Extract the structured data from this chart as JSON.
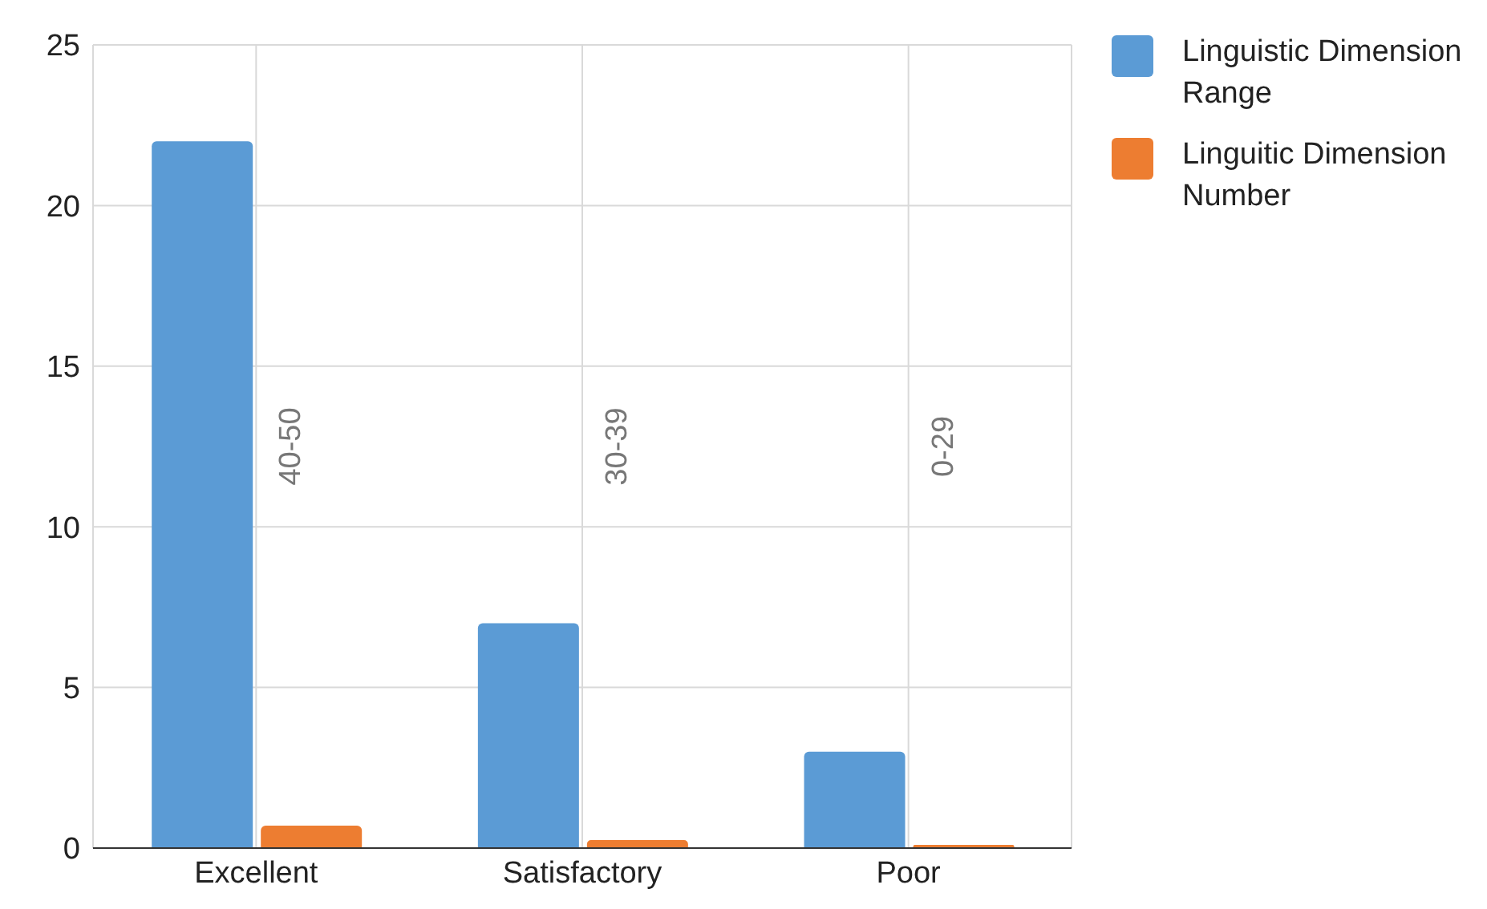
{
  "chart_data": {
    "type": "bar",
    "categories": [
      "Excellent",
      "Satisfactory",
      "Poor"
    ],
    "series": [
      {
        "name": "Linguistic Dimension Range",
        "color": "#5b9bd5",
        "values": [
          22,
          7,
          3
        ]
      },
      {
        "name": "Linguitic Dimension Number",
        "color": "#ed7d31",
        "values": [
          0.7,
          0.25,
          0.1
        ]
      }
    ],
    "ylim": [
      0,
      25
    ],
    "yticks": [
      0,
      5,
      10,
      15,
      20,
      25
    ],
    "grid": true,
    "legend": "right",
    "annotations": [
      "40-50",
      "30-39",
      "0-29"
    ]
  }
}
